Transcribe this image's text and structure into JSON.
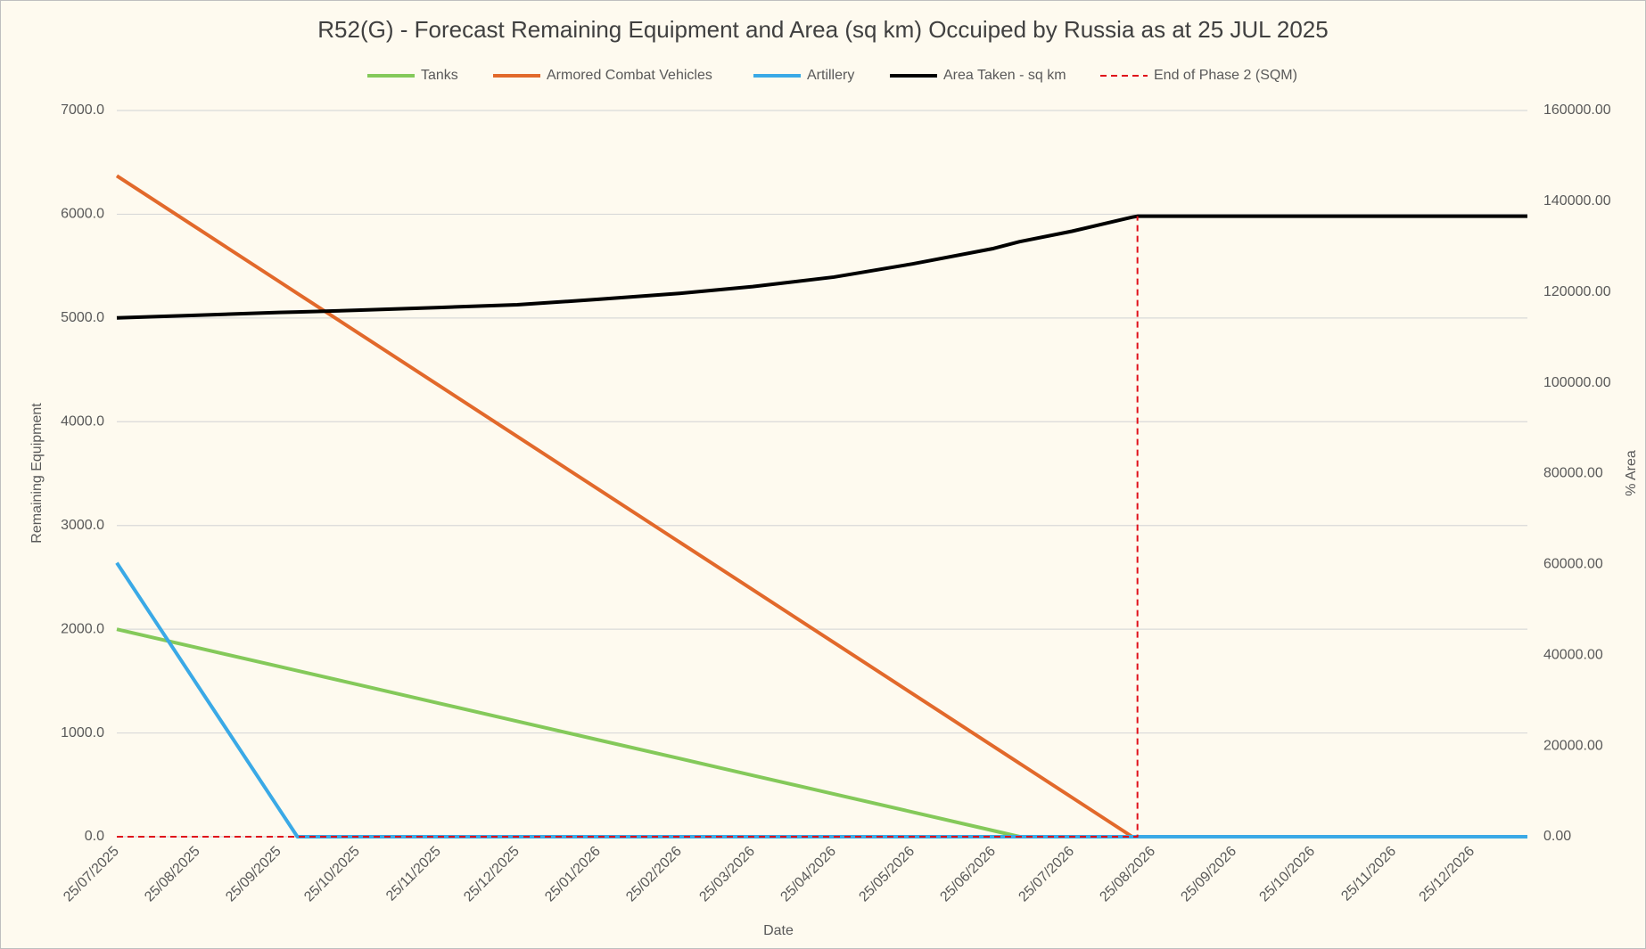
{
  "chart_data": {
    "type": "line",
    "title": "R52(G) - Forecast Remaining Equipment and Area (sq km) Occuiped by Russia as at 25 JUL 2025",
    "x_label": "Date",
    "y_label": "Remaining Equipment",
    "y2_label": "% Area",
    "x": [
      "25/07/2025",
      "25/08/2025",
      "25/09/2025",
      "02/10/2025",
      "25/10/2025",
      "25/11/2025",
      "25/12/2025",
      "25/01/2026",
      "25/02/2026",
      "25/03/2026",
      "25/04/2026",
      "25/05/2026",
      "25/06/2026",
      "05/07/2026",
      "25/07/2026",
      "17/08/2026",
      "19/08/2026",
      "25/08/2026",
      "25/09/2026",
      "25/10/2026",
      "25/11/2026",
      "25/12/2026",
      "15/01/2027"
    ],
    "xlim": [
      "25/07/2025",
      "15/01/2027"
    ],
    "xticks": [
      "25/07/2025",
      "25/08/2025",
      "25/09/2025",
      "25/10/2025",
      "25/11/2025",
      "25/12/2025",
      "25/01/2026",
      "25/02/2026",
      "25/03/2026",
      "25/04/2026",
      "25/05/2026",
      "25/06/2026",
      "25/07/2026",
      "25/08/2026",
      "25/09/2026",
      "25/10/2026",
      "25/11/2026",
      "25/12/2026"
    ],
    "ylim": [
      0,
      7000
    ],
    "yticks": [
      {
        "value": 0,
        "label": "0.0"
      },
      {
        "value": 1000,
        "label": "1000.0"
      },
      {
        "value": 2000,
        "label": "2000.0"
      },
      {
        "value": 3000,
        "label": "3000.0"
      },
      {
        "value": 4000,
        "label": "4000.0"
      },
      {
        "value": 5000,
        "label": "5000.0"
      },
      {
        "value": 6000,
        "label": "6000.0"
      },
      {
        "value": 7000,
        "label": "7000.0"
      }
    ],
    "y2lim": [
      0,
      160000
    ],
    "y2ticks": [
      {
        "value": 0,
        "label": "0.00"
      },
      {
        "value": 20000,
        "label": "20000.00"
      },
      {
        "value": 40000,
        "label": "40000.00"
      },
      {
        "value": 60000,
        "label": "60000.00"
      },
      {
        "value": 80000,
        "label": "80000.00"
      },
      {
        "value": 100000,
        "label": "100000.00"
      },
      {
        "value": 120000,
        "label": "120000.00"
      },
      {
        "value": 140000,
        "label": "140000.00"
      },
      {
        "value": 160000,
        "label": "160000.00"
      }
    ],
    "grid": true,
    "legend": "top",
    "series": [
      {
        "name": "Tanks",
        "color": "#84c95a",
        "values": [
          2000,
          1820,
          1641,
          1600,
          1467,
          1287,
          1113,
          933,
          754,
          591,
          412,
          238,
          58,
          0,
          0,
          0,
          0,
          0,
          0,
          0,
          0,
          0,
          0
        ]
      },
      {
        "name": "Armored Combat Vehicles",
        "color": "#e2692b",
        "values": [
          6370,
          5861,
          5352,
          5237,
          4860,
          4351,
          3858,
          3349,
          2840,
          2381,
          1872,
          1379,
          870,
          706,
          378,
          0,
          0,
          0,
          0,
          0,
          0,
          0,
          0
        ]
      },
      {
        "name": "Artillery",
        "color": "#3aa9e6",
        "values": [
          2640,
          1454,
          268,
          0,
          0,
          0,
          0,
          0,
          0,
          0,
          0,
          0,
          0,
          0,
          0,
          0,
          0,
          0,
          0,
          0,
          0,
          0,
          0
        ]
      },
      {
        "name": "Area Taken - sq km",
        "color": "#000000",
        "axis": "y2",
        "values": [
          114300,
          114900,
          115500,
          115600,
          116000,
          116600,
          117200,
          118400,
          119700,
          121200,
          123300,
          126200,
          129600,
          131100,
          133400,
          136500,
          136700,
          136700,
          136700,
          136700,
          136700,
          136700,
          136700
        ]
      },
      {
        "name": "End of Phase 2 (SQM)",
        "color": "#e0101a",
        "axis": "y2",
        "dashed": true,
        "x": [
          "25/07/2025",
          "19/08/2026",
          "19/08/2026"
        ],
        "values": [
          0,
          0,
          136700
        ]
      }
    ]
  }
}
